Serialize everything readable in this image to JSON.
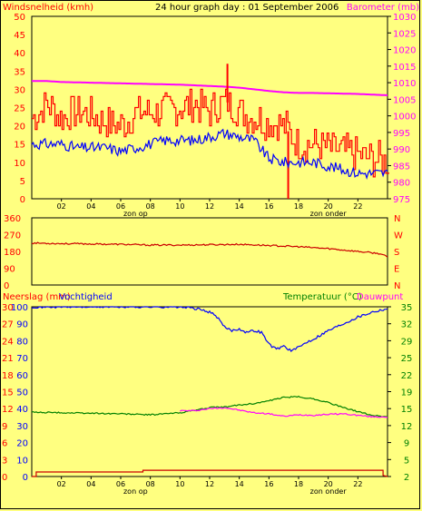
{
  "chart_data": [
    {
      "type": "line",
      "header_title": "24 hour graph day : 01 September 2006",
      "ylabel_left": "Windsnelheid (kmh)",
      "ylabel_right": "Barometer (mb)",
      "x_ticks": [
        "02",
        "04",
        "06",
        "08",
        "10",
        "12",
        "14",
        "16",
        "18",
        "20",
        "22"
      ],
      "x_annotations": [
        "zon op",
        "zon onder"
      ],
      "ylim_left": [
        0,
        50
      ],
      "yticks_left": [
        0,
        5,
        10,
        15,
        20,
        25,
        30,
        35,
        40,
        45,
        50
      ],
      "ylim_right": [
        975,
        1030
      ],
      "yticks_right": [
        975,
        980,
        985,
        990,
        995,
        1000,
        1005,
        1010,
        1015,
        1020,
        1025,
        1030
      ],
      "grid": false,
      "hours": [
        0,
        1,
        2,
        3,
        4,
        5,
        6,
        7,
        8,
        9,
        10,
        11,
        12,
        13,
        14,
        15,
        16,
        17,
        18,
        19,
        20,
        21,
        22,
        23,
        24
      ],
      "series": [
        {
          "axis": "right",
          "color": "#ff00ff",
          "values": [
            1010.5,
            1010.5,
            1010.2,
            1010.1,
            1010.0,
            1009.9,
            1009.8,
            1009.7,
            1009.6,
            1009.5,
            1009.4,
            1009.2,
            1009.0,
            1008.8,
            1008.5,
            1008.0,
            1007.5,
            1007.1,
            1006.9,
            1006.9,
            1006.8,
            1006.7,
            1006.6,
            1006.4,
            1006.2
          ]
        },
        {
          "axis": "left",
          "color": "#ff0000",
          "values": [
            22,
            26,
            22,
            24,
            23,
            21,
            20,
            23,
            24,
            24,
            25,
            26,
            24,
            27,
            24,
            22,
            21,
            20,
            15,
            15,
            14,
            13,
            12,
            11,
            10
          ]
        },
        {
          "axis": "left",
          "color": "#0000ff",
          "values": [
            15,
            15,
            15,
            14,
            14,
            14,
            13,
            14,
            15,
            16,
            16,
            16,
            17,
            18,
            17,
            16,
            11,
            10,
            10,
            10,
            9,
            8,
            7,
            7,
            7
          ]
        }
      ],
      "peaks": [
        {
          "x": 13.2,
          "y": 37,
          "axis": "left"
        },
        {
          "x": 17.3,
          "y": 0,
          "axis": "left"
        }
      ]
    },
    {
      "type": "line",
      "ylim": [
        0,
        360
      ],
      "yticks_left": [
        0,
        90,
        180,
        270,
        360
      ],
      "yticks_right": [
        "N",
        "E",
        "S",
        "W",
        "N"
      ],
      "grid": false,
      "hours": [
        0,
        2,
        4,
        6,
        8,
        10,
        12,
        14,
        16,
        18,
        20,
        22,
        23.5,
        24
      ],
      "series": [
        {
          "color": "#cc0000",
          "values": [
            225,
            222,
            220,
            218,
            214,
            214,
            216,
            218,
            212,
            205,
            195,
            180,
            168,
            150
          ]
        }
      ]
    },
    {
      "type": "line",
      "ylabel_left_1": "Neerslag (mm)",
      "ylabel_left_2": "Vochtigheid",
      "ylabel_right_1": "Temperatuur (°C)",
      "ylabel_right_2": "Dauwpunt",
      "x_ticks": [
        "02",
        "04",
        "06",
        "08",
        "10",
        "12",
        "14",
        "16",
        "18",
        "20",
        "22"
      ],
      "x_annotations": [
        "zon op",
        "zon onder"
      ],
      "yticks_left_rain": [
        0,
        3,
        6,
        9,
        12,
        15,
        18,
        21,
        24,
        27,
        30
      ],
      "yticks_left_humidity": [
        0,
        10,
        20,
        30,
        40,
        50,
        60,
        70,
        80,
        90,
        100
      ],
      "yticks_right": [
        2,
        5,
        9,
        12,
        15,
        19,
        22,
        25,
        29,
        32,
        35
      ],
      "ylim_humidity": [
        0,
        100
      ],
      "ylim_temp": [
        2,
        35
      ],
      "grid": false,
      "series": [
        {
          "name": "Vochtigheid",
          "axis": "humidity",
          "color": "#0000ff",
          "hours": [
            0,
            10,
            11,
            12,
            12.5,
            13,
            13.5,
            14,
            14.5,
            15,
            15.5,
            16,
            16.5,
            17,
            17.5,
            18,
            18.5,
            19,
            20,
            21,
            22,
            23,
            24
          ],
          "values": [
            100,
            100,
            99,
            97,
            94,
            88,
            86,
            87,
            85,
            86,
            85,
            78,
            75,
            77,
            74,
            76,
            79,
            81,
            86,
            90,
            94,
            97,
            99
          ]
        },
        {
          "name": "Temperatuur",
          "axis": "temp",
          "color": "#008000",
          "hours": [
            0,
            2,
            4,
            6,
            8,
            10,
            11,
            12,
            13,
            14,
            15,
            16,
            17,
            18,
            19,
            20,
            21,
            22,
            23,
            24
          ],
          "values": [
            14.5,
            14.4,
            14.3,
            14.2,
            14.0,
            14.4,
            14.9,
            15.4,
            15.5,
            15.9,
            16.2,
            16.7,
            17.4,
            17.5,
            17.1,
            16.4,
            15.4,
            14.6,
            13.9,
            13.6
          ]
        },
        {
          "name": "Dauwpunt",
          "axis": "temp",
          "color": "#ff00ff",
          "hours": [
            10,
            11,
            12,
            13,
            14,
            15,
            16,
            17,
            18,
            19,
            20,
            21,
            22,
            23,
            24
          ],
          "values": [
            14.8,
            14.8,
            15.2,
            15.4,
            14.9,
            14.4,
            14.2,
            13.7,
            14.0,
            13.9,
            14.1,
            14.2,
            13.9,
            13.6,
            13.6
          ]
        },
        {
          "name": "Neerslag",
          "axis": "rain",
          "color": "#cc0000",
          "hours": [
            0,
            0.3,
            0.3,
            7.5,
            7.5,
            23.7,
            23.7,
            24
          ],
          "values": [
            0,
            0,
            0.8,
            0.8,
            1.1,
            1.1,
            0.2,
            0
          ]
        }
      ]
    }
  ]
}
